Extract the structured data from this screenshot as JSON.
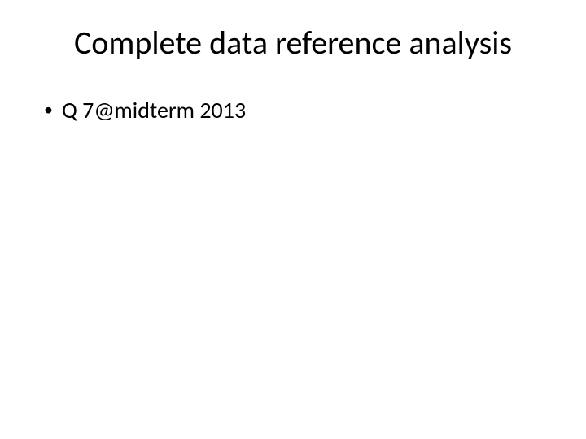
{
  "slide": {
    "title": "Complete data reference analysis",
    "bullets": [
      {
        "marker": "•",
        "text": "Q 7@midterm 2013"
      }
    ],
    "title_fontsize": 40,
    "body_fontsize": 28,
    "text_color": "#000000",
    "background_color": "#ffffff"
  }
}
